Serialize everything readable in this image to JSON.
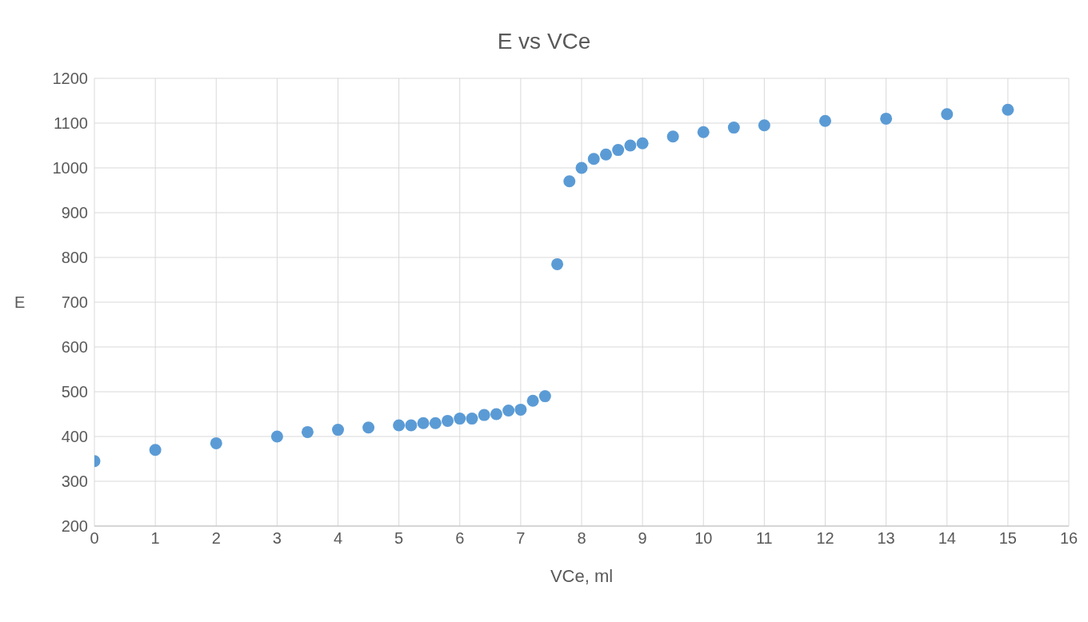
{
  "chart_data": {
    "type": "scatter",
    "title": "E vs VCe",
    "xlabel": "VCe, ml",
    "ylabel": "E",
    "x": [
      0,
      1,
      2,
      3,
      3.5,
      4,
      4.5,
      5,
      5.2,
      5.4,
      5.6,
      5.8,
      6,
      6.2,
      6.4,
      6.6,
      6.8,
      7,
      7.2,
      7.4,
      7.6,
      7.8,
      8,
      8.2,
      8.4,
      8.6,
      8.8,
      9,
      9.5,
      10,
      10.5,
      11,
      12,
      13,
      14,
      15
    ],
    "series": [
      {
        "color": "#5b9bd5",
        "values": [
          345,
          370,
          385,
          400,
          410,
          415,
          420,
          425,
          425,
          430,
          430,
          435,
          440,
          440,
          448,
          450,
          458,
          460,
          480,
          490,
          785,
          970,
          1000,
          1020,
          1030,
          1040,
          1050,
          1055,
          1070,
          1080,
          1090,
          1095,
          1105,
          1110,
          1120,
          1130
        ]
      }
    ],
    "xlim": [
      0,
      16
    ],
    "xticks": [
      0,
      1,
      2,
      3,
      4,
      5,
      6,
      7,
      8,
      9,
      10,
      11,
      12,
      13,
      14,
      15,
      16
    ],
    "ylim": [
      200,
      1200
    ],
    "yticks": [
      200,
      300,
      400,
      500,
      600,
      700,
      800,
      900,
      1000,
      1100,
      1200
    ],
    "grid": true,
    "marker": "circle",
    "legend": false
  }
}
